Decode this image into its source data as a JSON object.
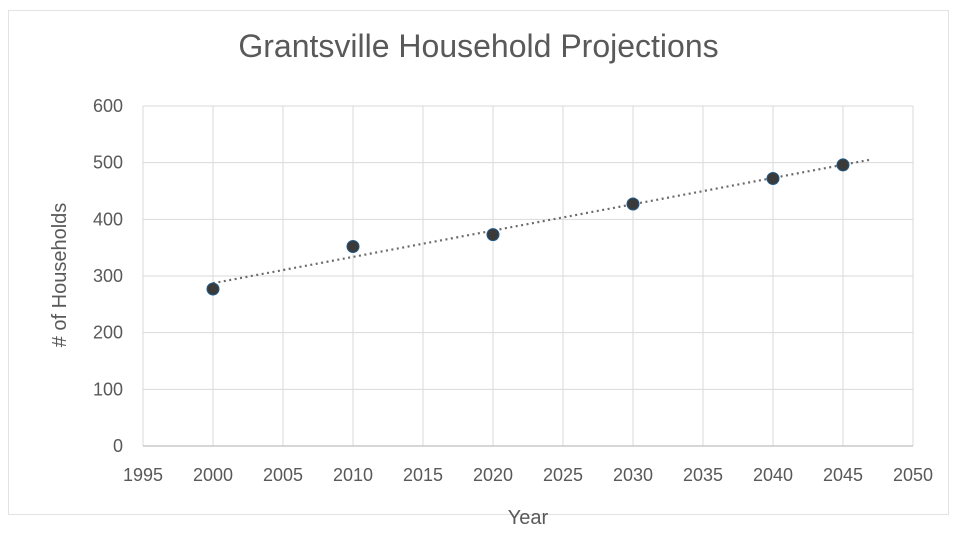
{
  "chart_data": {
    "type": "scatter",
    "title": "Grantsville Household Projections",
    "xlabel": "Year",
    "ylabel": "# of Households",
    "xlim": [
      1995,
      2050
    ],
    "ylim": [
      0,
      600
    ],
    "x_ticks": [
      1995,
      2000,
      2005,
      2010,
      2015,
      2020,
      2025,
      2030,
      2035,
      2040,
      2045,
      2050
    ],
    "y_ticks": [
      0,
      100,
      200,
      300,
      400,
      500,
      600
    ],
    "grid": true,
    "legend": "none",
    "trendline": "linear",
    "trendline_style": "dotted",
    "marker_color": "#3a3a3a",
    "marker_outline_color": "#1f5a8a",
    "trendline_color": "#6b6b6b",
    "grid_color": "#d9d9d9",
    "series": [
      {
        "x": [
          2000,
          2010,
          2020,
          2030,
          2040,
          2045
        ],
        "y": [
          277,
          352,
          373,
          427,
          472,
          496
        ]
      }
    ]
  }
}
